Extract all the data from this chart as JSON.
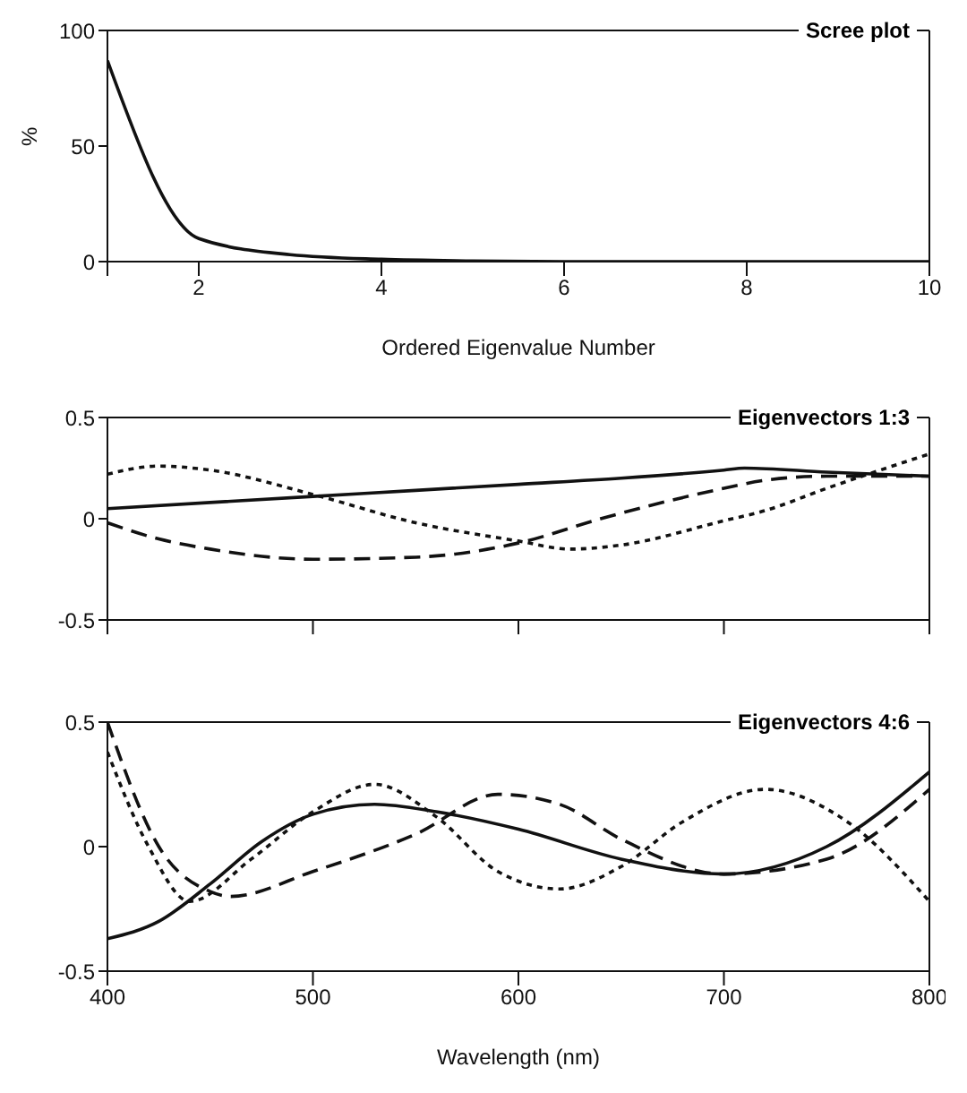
{
  "chart_data": [
    {
      "type": "line",
      "title": "Scree plot",
      "xlabel": "Ordered Eigenvalue Number",
      "ylabel": "%",
      "xlim": [
        1,
        10
      ],
      "xticks": [
        {
          "value": 1,
          "label": null
        },
        2,
        4,
        6,
        8,
        10
      ],
      "ylim": [
        0,
        100
      ],
      "yticks": [
        0,
        50,
        100
      ],
      "marker": "none",
      "series": [
        {
          "color": "#111111",
          "line_style": "solid",
          "x": [
            1,
            2,
            3,
            4,
            5,
            6,
            7,
            8,
            9,
            10
          ],
          "values": [
            87,
            10,
            3,
            1,
            0.3,
            0,
            0,
            0,
            0,
            0
          ]
        }
      ]
    },
    {
      "type": "line",
      "title": "Eigenvectors 1:3",
      "xlim": [
        400,
        800
      ],
      "xticks": [
        400,
        500,
        600,
        700,
        800
      ],
      "ylim": [
        -0.5,
        0.5
      ],
      "yticks": [
        -0.5,
        0,
        0.5
      ],
      "tick_labels": "y",
      "marker": "none",
      "series": [
        {
          "color": "#111111",
          "line_style": "solid",
          "x": [
            400,
            450,
            500,
            550,
            600,
            650,
            700,
            710,
            750,
            800
          ],
          "values": [
            0.05,
            0.08,
            0.11,
            0.14,
            0.17,
            0.2,
            0.24,
            0.25,
            0.23,
            0.21
          ]
        },
        {
          "color": "#111111",
          "line_style": "dashed",
          "x": [
            400,
            425,
            450,
            500,
            550,
            600,
            640,
            700,
            720,
            750,
            800
          ],
          "values": [
            -0.02,
            -0.1,
            -0.15,
            -0.2,
            -0.19,
            -0.12,
            0,
            0.15,
            0.19,
            0.21,
            0.21
          ]
        },
        {
          "color": "#111111",
          "line_style": "dotted",
          "x": [
            400,
            425,
            450,
            500,
            550,
            600,
            625,
            650,
            700,
            720,
            750,
            800
          ],
          "values": [
            0.22,
            0.26,
            0.24,
            0.12,
            -0.02,
            -0.11,
            -0.15,
            -0.13,
            -0.01,
            0.04,
            0.15,
            0.32
          ]
        }
      ]
    },
    {
      "type": "line",
      "title": "Eigenvectors 4:6",
      "xlabel": "Wavelength (nm)",
      "xlim": [
        400,
        800
      ],
      "xticks": [
        400,
        500,
        600,
        700,
        800
      ],
      "ylim": [
        -0.5,
        0.5
      ],
      "yticks": [
        -0.5,
        0,
        0.5
      ],
      "marker": "none",
      "series": [
        {
          "color": "#111111",
          "line_style": "solid",
          "x": [
            400,
            425,
            450,
            475,
            500,
            530,
            560,
            600,
            650,
            700,
            750,
            800
          ],
          "values": [
            -0.37,
            -0.3,
            -0.15,
            0.02,
            0.13,
            0.17,
            0.14,
            0.07,
            -0.05,
            -0.11,
            0,
            0.3
          ]
        },
        {
          "color": "#111111",
          "line_style": "dashed",
          "x": [
            400,
            425,
            450,
            460,
            500,
            550,
            590,
            620,
            650,
            700,
            750,
            800
          ],
          "values": [
            0.5,
            0,
            -0.18,
            -0.2,
            -0.1,
            0.05,
            0.21,
            0.17,
            0.03,
            -0.11,
            -0.05,
            0.23
          ]
        },
        {
          "color": "#111111",
          "line_style": "dotted",
          "x": [
            400,
            420,
            440,
            470,
            500,
            530,
            560,
            590,
            620,
            650,
            680,
            720,
            760,
            800
          ],
          "values": [
            0.38,
            0,
            -0.22,
            -0.05,
            0.14,
            0.25,
            0.12,
            -0.1,
            -0.17,
            -0.08,
            0.1,
            0.23,
            0.1,
            -0.22
          ]
        }
      ]
    }
  ]
}
